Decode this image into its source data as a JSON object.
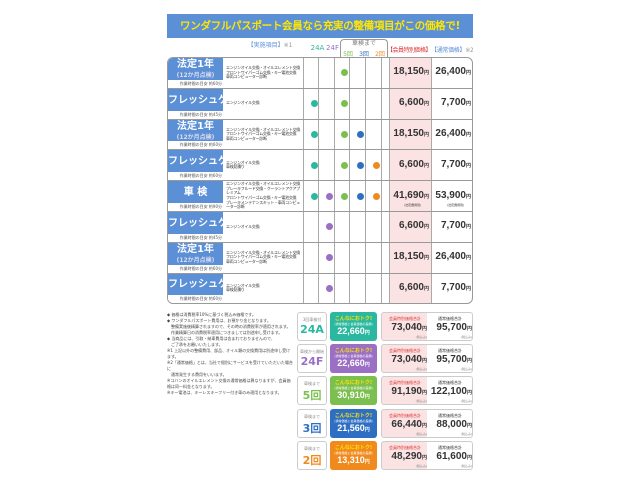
{
  "banner": "ワンダフルパスポート会員なら充実の整備項目がこの価格で!",
  "headers": {
    "items": "【実施項目】",
    "items_note": "※1",
    "c24a": "24A",
    "c24f": "24F",
    "until": "車検まで",
    "c5": "5回",
    "c3": "3回",
    "c2": "2回",
    "member": "【会員特別価格】",
    "normal": "【通常価格】",
    "normal_note": "※2"
  },
  "colors": {
    "24A": "#2bb8a0",
    "24F": "#9a6fc4",
    "5": "#7bbf4e",
    "3": "#2e6fc4",
    "2": "#f08a1c",
    "blue": "#5b8fd6"
  },
  "rows": [
    {
      "title": "法定1年",
      "sub": "(12か月点検)",
      "time": "作業時間の目安 約60分",
      "desc": [
        "エンジンオイル交換・オイルエレメント交換",
        "フロントワイパーゴム交換・キー電池交換",
        "車両コンピューター診断"
      ],
      "dots": [
        "5"
      ],
      "member": "18,150",
      "normal": "26,400"
    },
    {
      "title": "フレッシュケア",
      "sub": "",
      "time": "作業時間の目安 約45分",
      "desc": [
        "エンジンオイル交換"
      ],
      "dots": [
        "24A",
        "5"
      ],
      "member": "6,600",
      "normal": "7,700"
    },
    {
      "title": "法定1年",
      "sub": "(12か月点検)",
      "time": "作業時間の目安 約60分",
      "desc": [
        "エンジンオイル交換・オイルエレメント交換",
        "フロントワイパーゴム交換・キー電池交換",
        "車両コンピューター診断"
      ],
      "dots": [
        "24A",
        "5",
        "3"
      ],
      "member": "18,150",
      "normal": "26,400"
    },
    {
      "title": "フレッシュケア",
      "sub": "",
      "time": "作業時間の目安 約60分",
      "desc": [
        "エンジンオイル交換",
        "車検見積り"
      ],
      "dots": [
        "24A",
        "5",
        "3",
        "2"
      ],
      "member": "6,600",
      "normal": "7,700"
    },
    {
      "title": "車 検",
      "sub": "",
      "time": "作業時間の目安 約90分",
      "desc": [
        "エンジンオイル交換・オイルエレメント交換",
        "ブレーキフルード交換・クーラントアクアプレミアム",
        "フロントワイパーゴム交換・キー電池交換",
        "ブレーキメンテナンスキット・車両コンピューター診断"
      ],
      "dots": [
        "24A",
        "24F",
        "5",
        "3",
        "2"
      ],
      "member": "41,690",
      "normal": "53,900",
      "note": "(法定費用別)"
    },
    {
      "title": "フレッシュケア",
      "sub": "",
      "time": "作業時間の目安 約45分",
      "desc": [
        "エンジンオイル交換"
      ],
      "dots": [
        "24F"
      ],
      "member": "6,600",
      "normal": "7,700"
    },
    {
      "title": "法定1年",
      "sub": "(12か月点検)",
      "time": "作業時間の目安 約60分",
      "desc": [
        "エンジンオイル交換・オイルエレメント交換",
        "フロントワイパーゴム交換・キー電池交換",
        "車両コンピューター診断"
      ],
      "dots": [
        "24F"
      ],
      "member": "18,150",
      "normal": "26,400"
    },
    {
      "title": "フレッシュケア",
      "sub": "",
      "time": "作業時間の目安 約60分",
      "desc": [
        "エンジンオイル交換",
        "車検見積り"
      ],
      "dots": [
        "24F"
      ],
      "member": "6,600",
      "normal": "7,700"
    }
  ],
  "yen": "円",
  "notes": [
    "◆ 価格は消費税率10%に基づく税込み価格です。",
    "◆ ワンダフルパスポート費用は、お預かり金となります。",
    "　整備実施後精算されますので、その時の消費税率が適用されます。",
    "　作業精算日の消費税率適用につきましては別途申し受けます。",
    "◆ 当商品には、引取・納車費用は含まれておりませんので、",
    "　ご了承をお願いいたします。",
    "※1 上記以外の整備費用、部品、オイル類の交換費用は別途申し受けます。",
    "※2「通常価格」とは、当社で個別にサービスを受けていただいた場合に",
    "　通常発生する費用をいいます。",
    "※コバンのオイルエレメント交換の通常価格は異なりますが、会員価格は同一料金となります。",
    "※キー電池は、キーレスキーフリー付き車のみ適用となります。"
  ],
  "plans": [
    {
      "small": "3回車検付",
      "big": "24A",
      "color": "24A",
      "deal": "こんなにおトク!",
      "deal_sub": "(通常価格と会員価格の差額)",
      "saving": "22,660",
      "member_label": "会員特別価格合計",
      "member": "73,040",
      "normal_label": "通常価格合計",
      "normal": "95,700",
      "tax": "(税込み)"
    },
    {
      "small": "車検から開始",
      "big": "24F",
      "color": "24F",
      "deal": "こんなにおトク!",
      "deal_sub": "(通常価格と会員価格の差額)",
      "saving": "22,660",
      "member_label": "会員特別価格合計",
      "member": "73,040",
      "normal_label": "通常価格合計",
      "normal": "95,700",
      "tax": "(税込み)"
    },
    {
      "small": "車検まで",
      "big": "5回",
      "color": "5",
      "deal": "こんなにおトク!",
      "deal_sub": "(通常価格と会員価格の差額)",
      "saving": "30,910",
      "member_label": "会員特別価格合計",
      "member": "91,190",
      "normal_label": "通常価格合計",
      "normal": "122,100",
      "tax": "(税込み)"
    },
    {
      "small": "車検まで",
      "big": "3回",
      "color": "3",
      "deal": "こんなにおトク!",
      "deal_sub": "(通常価格と会員価格の差額)",
      "saving": "21,560",
      "member_label": "会員特別価格合計",
      "member": "66,440",
      "normal_label": "通常価格合計",
      "normal": "88,000",
      "tax": "(税込み)"
    },
    {
      "small": "車検まで",
      "big": "2回",
      "color": "2",
      "deal": "こんなにおトク!",
      "deal_sub": "(通常価格と会員価格の差額)",
      "saving": "13,310",
      "member_label": "会員特別価格合計",
      "member": "48,290",
      "normal_label": "通常価格合計",
      "normal": "61,600",
      "tax": "(税込み)"
    }
  ]
}
